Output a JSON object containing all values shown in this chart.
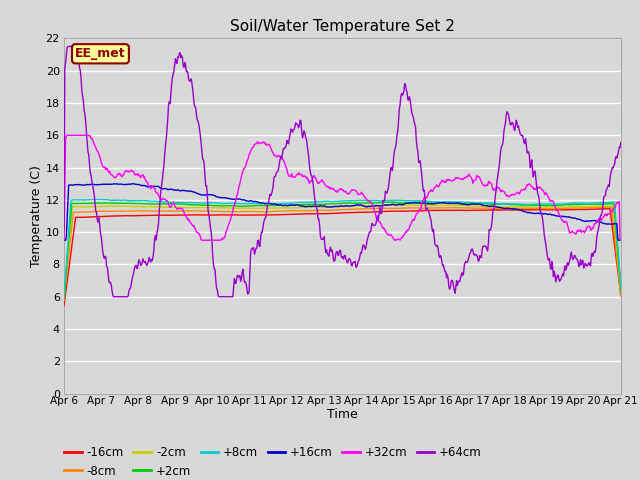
{
  "title": "Soil/Water Temperature Set 2",
  "xlabel": "Time",
  "ylabel": "Temperature (C)",
  "ylim": [
    0,
    22
  ],
  "yticks": [
    0,
    2,
    4,
    6,
    8,
    10,
    12,
    14,
    16,
    18,
    20,
    22
  ],
  "x_labels": [
    "Apr 6",
    "Apr 7",
    "Apr 8",
    "Apr 9",
    "Apr 10",
    "Apr 11",
    "Apr 12",
    "Apr 13",
    "Apr 14",
    "Apr 15",
    "Apr 16",
    "Apr 17",
    "Apr 18",
    "Apr 19",
    "Apr 20",
    "Apr 21"
  ],
  "bg_color": "#d8d8d8",
  "grid_color": "#ffffff",
  "watermark_text": "EE_met",
  "watermark_fg": "#8b0000",
  "watermark_bg": "#ffff99",
  "series_colors": {
    "-16cm": "#ff0000",
    "-8cm": "#ff8800",
    "-2cm": "#cccc00",
    "+2cm": "#00cc00",
    "+8cm": "#00cccc",
    "+16cm": "#0000cc",
    "+32cm": "#ff00ff",
    "+64cm": "#9900cc"
  },
  "lw": 1.0
}
